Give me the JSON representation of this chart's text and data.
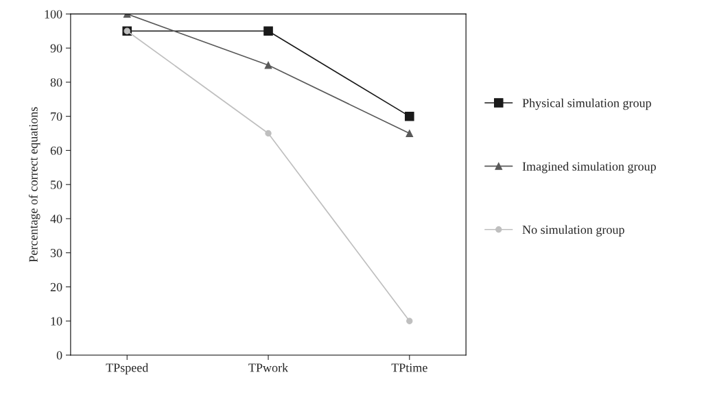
{
  "chart_data": {
    "type": "line",
    "ylabel": "Percentage of correct equations",
    "categories": [
      "TPspeed",
      "TPwork",
      "TPtime"
    ],
    "series": [
      {
        "name": "Physical simulation group",
        "color": "#1a1a1a",
        "marker": "square",
        "values": [
          95,
          95,
          70
        ]
      },
      {
        "name": "Imagined simulation group",
        "color": "#595959",
        "marker": "triangle",
        "values": [
          100,
          85,
          65
        ]
      },
      {
        "name": "No simulation group",
        "color": "#bfbfbf",
        "marker": "circle",
        "values": [
          95,
          65,
          10
        ]
      }
    ],
    "ylim": [
      0,
      100
    ],
    "yticks": [
      0,
      10,
      20,
      30,
      40,
      50,
      60,
      70,
      80,
      90,
      100
    ],
    "grid": false,
    "legend": "right"
  }
}
